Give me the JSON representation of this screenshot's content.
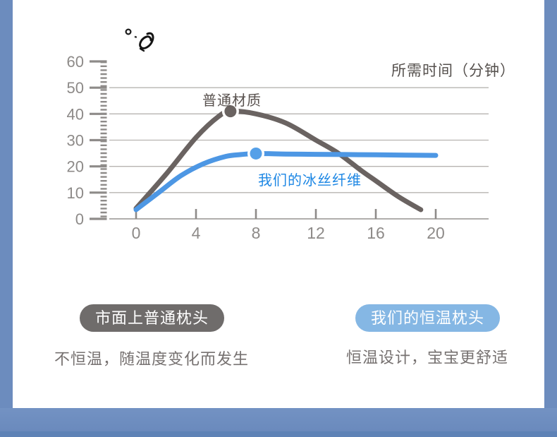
{
  "page": {
    "frame_color": "#6c8cbe",
    "frame_edge_color": "#5e82b6",
    "scribble_mark": "°b"
  },
  "chart_data": {
    "type": "line",
    "title": "",
    "xlabel": "所需时间（分钟）",
    "ylabel": "",
    "x_ticks": [
      0,
      4,
      8,
      12,
      16,
      20
    ],
    "y_ticks": [
      0,
      10,
      20,
      30,
      40,
      50,
      60
    ],
    "xlim": [
      0,
      20
    ],
    "ylim": [
      0,
      60
    ],
    "grid": "horizontal",
    "legend_position": "inline-labels",
    "series": [
      {
        "name": "普通材质",
        "color": "#6a6361",
        "marker_color": "#6a6361",
        "points": [
          [
            0,
            4
          ],
          [
            2,
            17
          ],
          [
            4,
            31
          ],
          [
            5.5,
            39
          ],
          [
            6.3,
            41
          ],
          [
            8,
            40
          ],
          [
            10,
            36.5
          ],
          [
            12,
            30
          ],
          [
            13.5,
            25
          ],
          [
            15,
            18.5
          ],
          [
            16,
            14.5
          ],
          [
            17.5,
            8.5
          ],
          [
            19,
            3.5
          ]
        ],
        "marker": {
          "x": 6.3,
          "y": 41
        }
      },
      {
        "name": "我们的冰丝纤维",
        "color": "#4d97e4",
        "marker_color": "#55a0e8",
        "points": [
          [
            0,
            3.5
          ],
          [
            1.5,
            10
          ],
          [
            3,
            16.5
          ],
          [
            4.5,
            21
          ],
          [
            6,
            23.8
          ],
          [
            7,
            24.5
          ],
          [
            8,
            24.9
          ],
          [
            10,
            24.7
          ],
          [
            12,
            24.6
          ],
          [
            14,
            24.5
          ],
          [
            16,
            24.4
          ],
          [
            18,
            24.3
          ],
          [
            20,
            24.2
          ]
        ],
        "marker": {
          "x": 8,
          "y": 24.9
        }
      }
    ]
  },
  "legend": {
    "ordinary": {
      "pill": "市面上普通枕头",
      "pill_bg": "#6f6c6b",
      "caption": "不恒温，随温度变化而发生"
    },
    "ours": {
      "pill": "我们的恒温枕头",
      "pill_bg": "#85b7e4",
      "caption": "恒温设计，宝宝更舒适"
    }
  }
}
